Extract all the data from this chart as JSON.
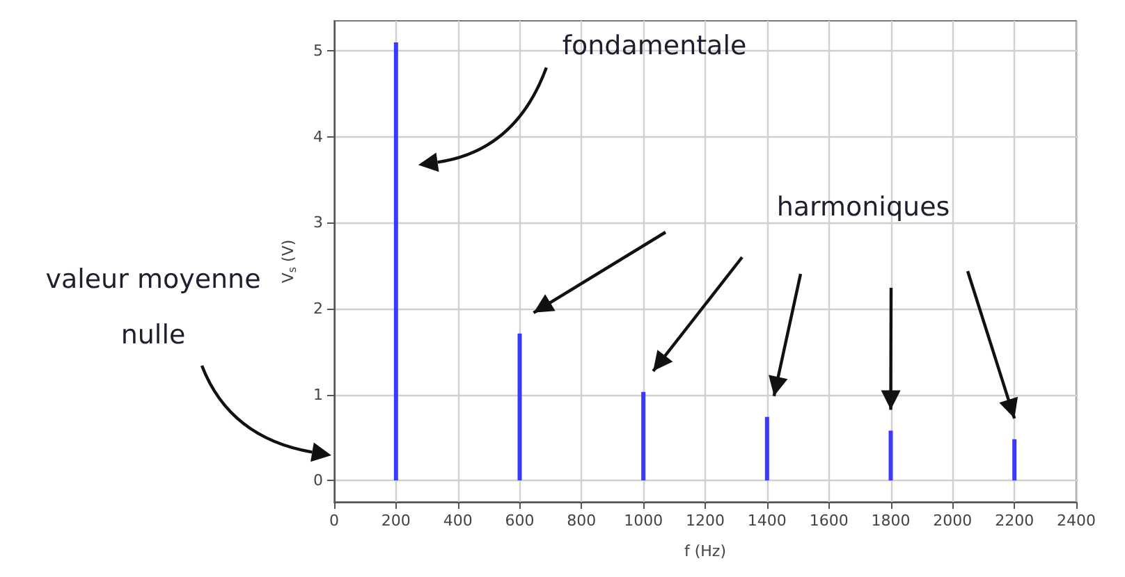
{
  "chart_data": {
    "type": "bar",
    "xlabel": "f (Hz)",
    "ylabel": "V$_{s}$ (V)",
    "x": [
      200,
      600,
      1000,
      1400,
      1800,
      2200
    ],
    "values": [
      5.1,
      1.71,
      1.03,
      0.74,
      0.58,
      0.48
    ],
    "color": "#3a3aff",
    "xlim": [
      0,
      2400
    ],
    "xticks": [
      0,
      200,
      400,
      600,
      800,
      1000,
      1200,
      1400,
      1600,
      1800,
      2000,
      2200,
      2400
    ],
    "ylim": [
      -0.25,
      5.35
    ],
    "yticks": [
      0,
      1,
      2,
      3,
      4,
      5
    ],
    "grid": true,
    "annotations": [
      "fondamentale",
      "harmoniques",
      "valeur moyenne nulle"
    ]
  }
}
